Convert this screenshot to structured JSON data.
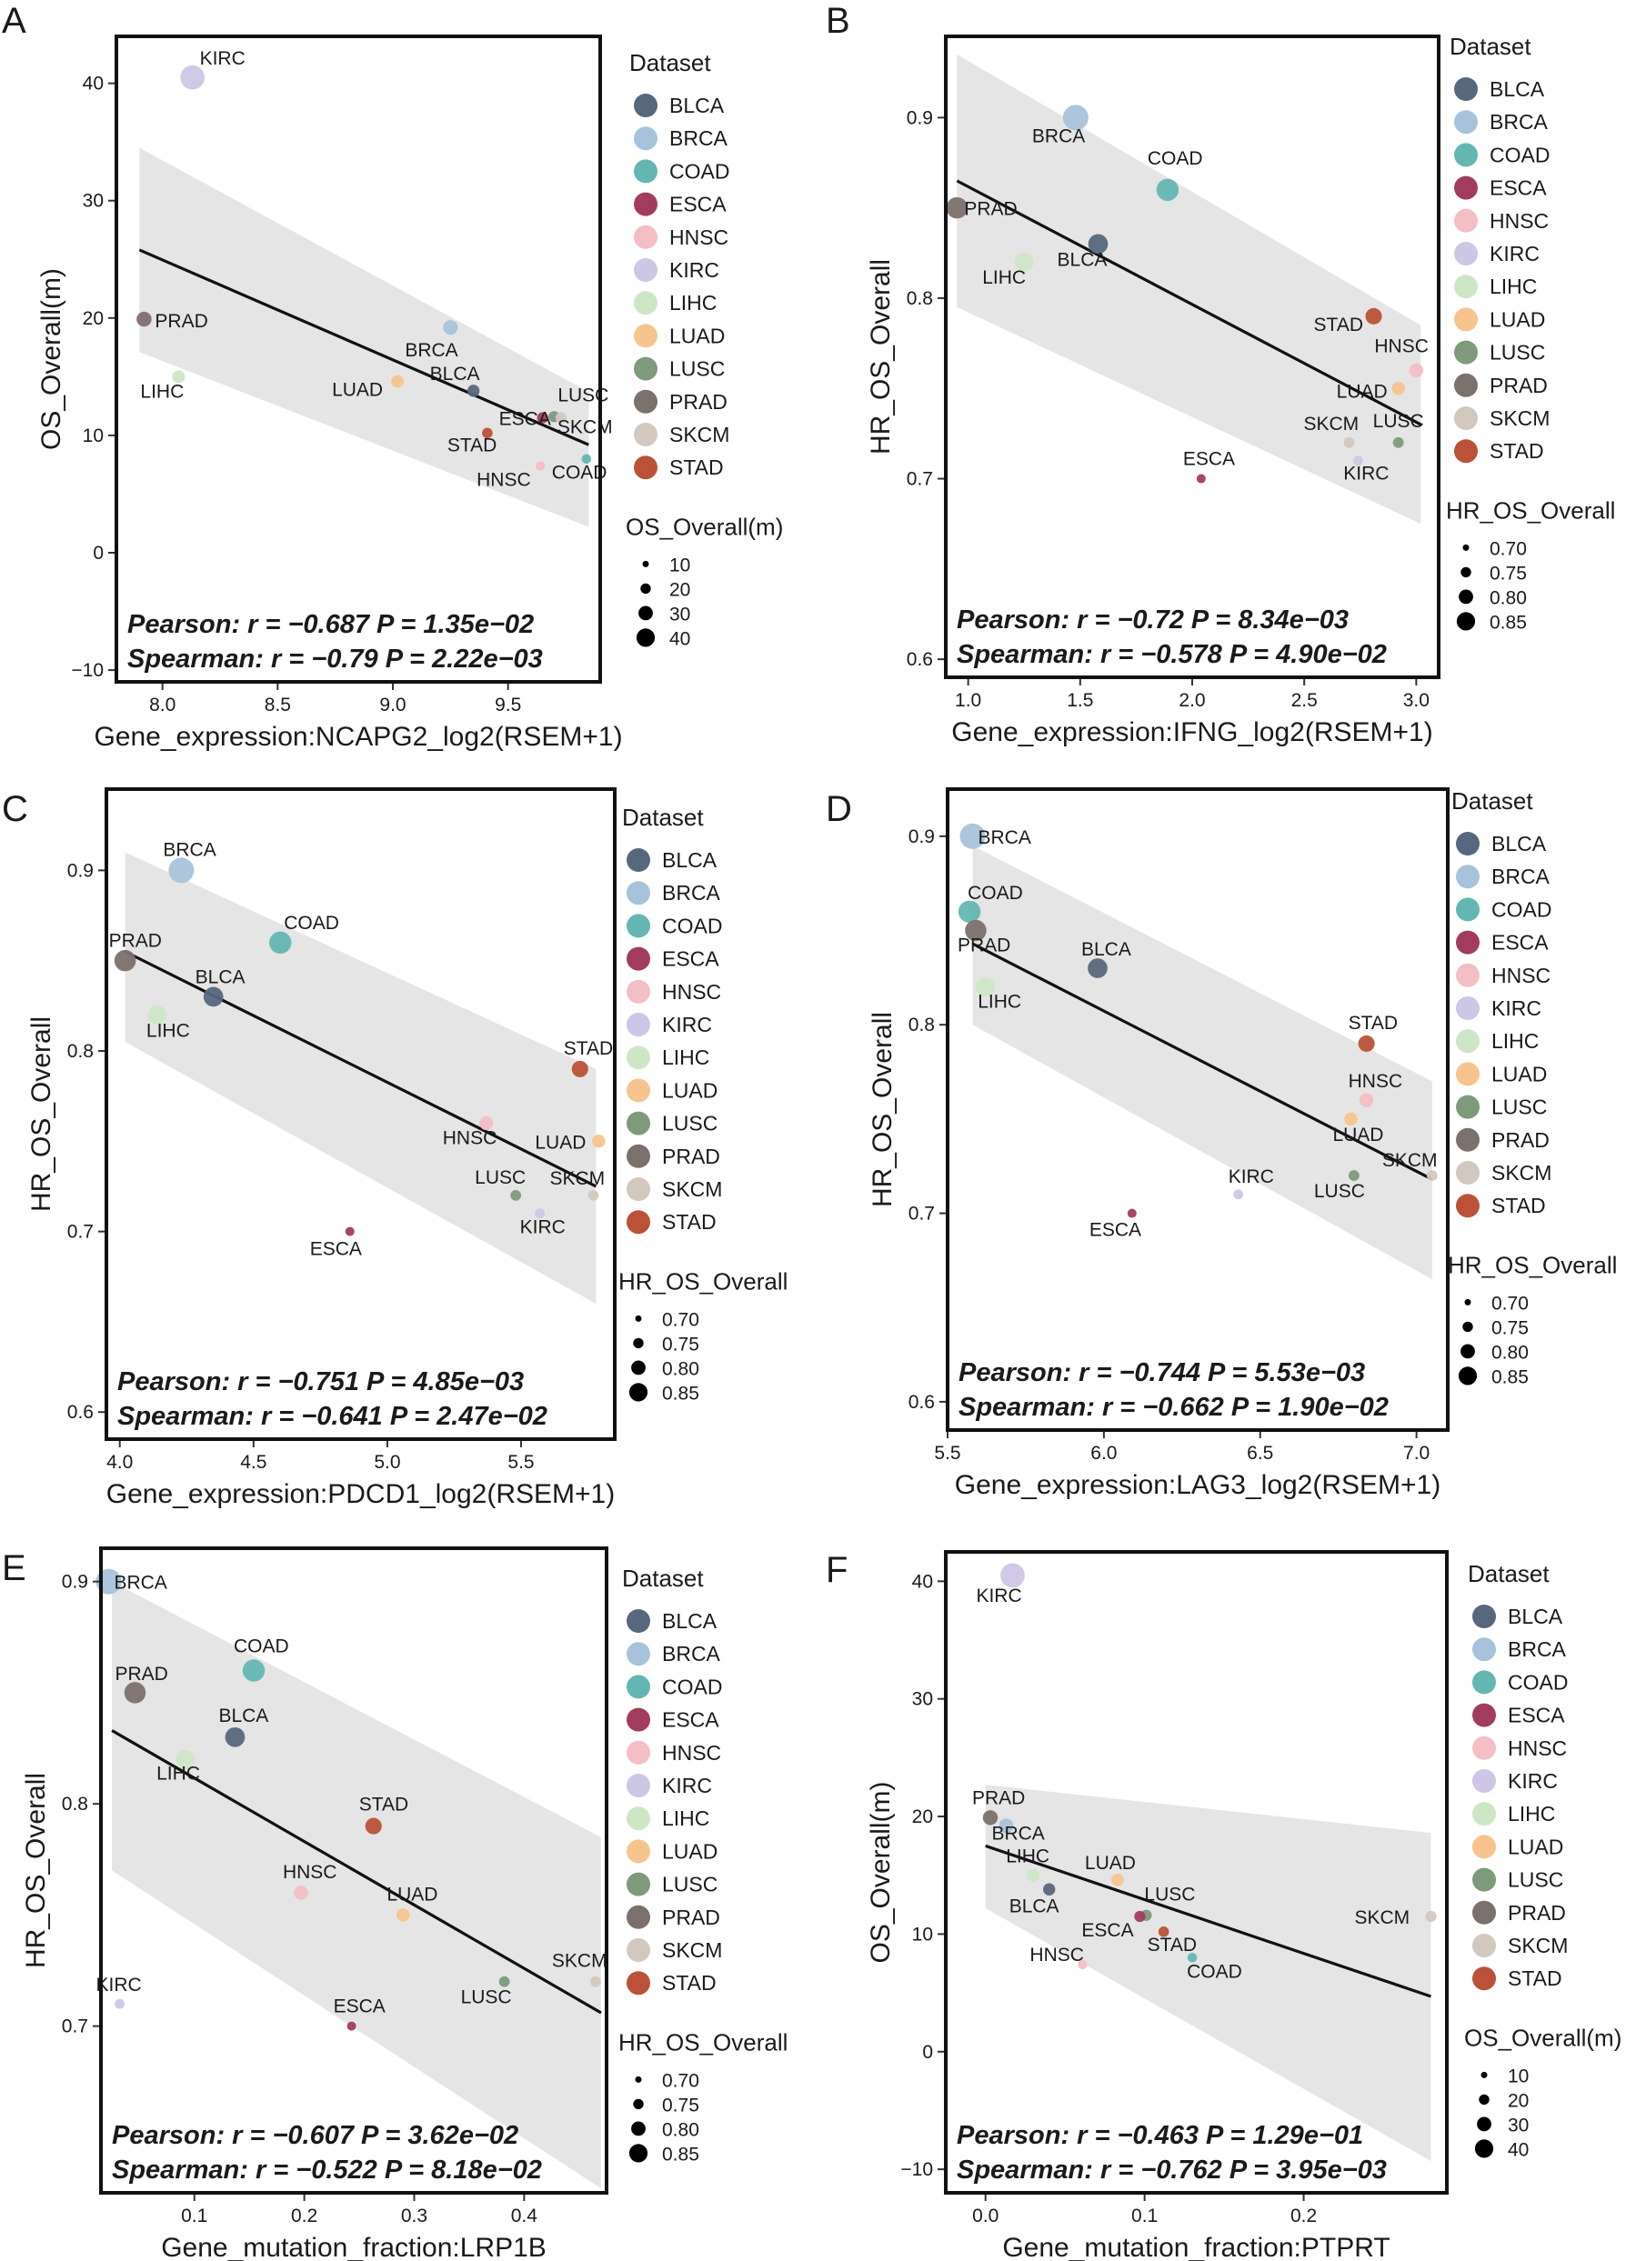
{
  "legend_labels": {
    "dataset": "Dataset"
  },
  "categories": [
    "BLCA",
    "BRCA",
    "COAD",
    "ESCA",
    "HNSC",
    "KIRC",
    "LIHC",
    "LUAD",
    "LUSC",
    "PRAD",
    "SKCM",
    "STAD"
  ],
  "colors": {
    "BLCA": "#57677d",
    "BRCA": "#a6c3db",
    "COAD": "#64b6b3",
    "ESCA": "#a23c5f",
    "HNSC": "#f3bec4",
    "KIRC": "#cdc6e7",
    "LIHC": "#cde7c6",
    "LUAD": "#f7c48d",
    "LUSC": "#7d9a7b",
    "PRAD": "#7b706b",
    "SKCM": "#d2c8be",
    "STAD": "#bb5138",
    "band": "#e5e5e5",
    "line": "#111111",
    "frame": "#111111"
  },
  "chart_data": [
    {
      "type": "scatter",
      "panel": "A",
      "xlabel": "Gene_expression:NCAPG2_log2(RSEM+1)",
      "ylabel": "OS_Overall(m)",
      "xlim": [
        7.8,
        9.9
      ],
      "ylim": [
        -11,
        44
      ],
      "xticks": [
        8.0,
        8.5,
        9.0,
        9.5
      ],
      "xtick_labels": [
        "8.0",
        "8.5",
        "9.0",
        "9.5"
      ],
      "yticks": [
        -10,
        0,
        10,
        20,
        30,
        40
      ],
      "ytick_labels": [
        "−10",
        "0",
        "10",
        "20",
        "30",
        "40"
      ],
      "size_title": "OS_Overall(m)",
      "size_legend": [
        {
          "label": "10",
          "v": 10
        },
        {
          "label": "20",
          "v": 20
        },
        {
          "label": "30",
          "v": 30
        },
        {
          "label": "40",
          "v": 40
        }
      ],
      "size_range": [
        7,
        43
      ],
      "points": [
        {
          "name": "KIRC",
          "x": 8.13,
          "y": 40.5,
          "size_value": 40.5
        },
        {
          "name": "PRAD",
          "x": 7.92,
          "y": 19.9,
          "size_value": 19.9
        },
        {
          "name": "LIHC",
          "x": 8.07,
          "y": 15.0,
          "size_value": 15.0
        },
        {
          "name": "BRCA",
          "x": 9.25,
          "y": 19.2,
          "size_value": 19.2
        },
        {
          "name": "BLCA",
          "x": 9.35,
          "y": 13.8,
          "size_value": 13.8
        },
        {
          "name": "LUAD",
          "x": 9.02,
          "y": 14.6,
          "size_value": 14.6
        },
        {
          "name": "ESCA",
          "x": 9.65,
          "y": 11.5,
          "size_value": 11.5
        },
        {
          "name": "LUSC",
          "x": 9.7,
          "y": 11.6,
          "size_value": 11.6
        },
        {
          "name": "SKCM",
          "x": 9.73,
          "y": 11.5,
          "size_value": 11.5
        },
        {
          "name": "STAD",
          "x": 9.41,
          "y": 10.2,
          "size_value": 10.2
        },
        {
          "name": "HNSC",
          "x": 9.64,
          "y": 7.4,
          "size_value": 7.4
        },
        {
          "name": "COAD",
          "x": 9.84,
          "y": 8.0,
          "size_value": 8.0
        }
      ],
      "fit": {
        "x": [
          7.9,
          9.85
        ],
        "y": [
          25.8,
          9.2
        ]
      },
      "band": {
        "upper": [
          34.5,
          13.7
        ],
        "lower": [
          17.1,
          2.2
        ]
      },
      "stats": [
        "Pearson: r = −0.687 P = 1.35e−02",
        "Spearman: r = −0.79 P = 2.22e−03"
      ]
    },
    {
      "type": "scatter",
      "panel": "B",
      "xlabel": "Gene_expression:IFNG_log2(RSEM+1)",
      "ylabel": "HR_OS_Overall",
      "xlim": [
        0.9,
        3.1
      ],
      "ylim": [
        0.59,
        0.945
      ],
      "xticks": [
        1.0,
        1.5,
        2.0,
        2.5,
        3.0
      ],
      "xtick_labels": [
        "1.0",
        "1.5",
        "2.0",
        "2.5",
        "3.0"
      ],
      "yticks": [
        0.6,
        0.7,
        0.8,
        0.9
      ],
      "ytick_labels": [
        "0.6",
        "0.7",
        "0.8",
        "0.9"
      ],
      "size_title": "HR_OS_Overall",
      "size_legend": [
        {
          "label": "0.70",
          "v": 0.7
        },
        {
          "label": "0.75",
          "v": 0.75
        },
        {
          "label": "0.80",
          "v": 0.8
        },
        {
          "label": "0.85",
          "v": 0.85
        }
      ],
      "size_range": [
        0.7,
        0.9
      ],
      "points": [
        {
          "name": "BRCA",
          "x": 1.48,
          "y": 0.9,
          "size_value": 0.9
        },
        {
          "name": "COAD",
          "x": 1.89,
          "y": 0.86,
          "size_value": 0.86
        },
        {
          "name": "PRAD",
          "x": 0.95,
          "y": 0.85,
          "size_value": 0.85
        },
        {
          "name": "BLCA",
          "x": 1.58,
          "y": 0.83,
          "size_value": 0.83
        },
        {
          "name": "LIHC",
          "x": 1.25,
          "y": 0.82,
          "size_value": 0.82
        },
        {
          "name": "STAD",
          "x": 2.81,
          "y": 0.79,
          "size_value": 0.79
        },
        {
          "name": "HNSC",
          "x": 3.0,
          "y": 0.76,
          "size_value": 0.76
        },
        {
          "name": "LUAD",
          "x": 2.92,
          "y": 0.75,
          "size_value": 0.75
        },
        {
          "name": "SKCM",
          "x": 2.7,
          "y": 0.72,
          "size_value": 0.72
        },
        {
          "name": "LUSC",
          "x": 2.92,
          "y": 0.72,
          "size_value": 0.72
        },
        {
          "name": "KIRC",
          "x": 2.74,
          "y": 0.71,
          "size_value": 0.71
        },
        {
          "name": "ESCA",
          "x": 2.04,
          "y": 0.7,
          "size_value": 0.7
        }
      ],
      "fit": {
        "x": [
          0.95,
          3.02
        ],
        "y": [
          0.865,
          0.73
        ]
      },
      "band": {
        "upper": [
          0.935,
          0.785
        ],
        "lower": [
          0.795,
          0.675
        ]
      },
      "stats": [
        "Pearson: r = −0.72 P = 8.34e−03",
        "Spearman: r = −0.578 P = 4.90e−02"
      ]
    },
    {
      "type": "scatter",
      "panel": "C",
      "xlabel": "Gene_expression:PDCD1_log2(RSEM+1)",
      "ylabel": "HR_OS_Overall",
      "xlim": [
        3.95,
        5.85
      ],
      "ylim": [
        0.585,
        0.945
      ],
      "xticks": [
        4.0,
        4.5,
        5.0,
        5.5
      ],
      "xtick_labels": [
        "4.0",
        "4.5",
        "5.0",
        "5.5"
      ],
      "yticks": [
        0.6,
        0.7,
        0.8,
        0.9
      ],
      "ytick_labels": [
        "0.6",
        "0.7",
        "0.8",
        "0.9"
      ],
      "size_title": "HR_OS_Overall",
      "size_legend": [
        {
          "label": "0.70",
          "v": 0.7
        },
        {
          "label": "0.75",
          "v": 0.75
        },
        {
          "label": "0.80",
          "v": 0.8
        },
        {
          "label": "0.85",
          "v": 0.85
        }
      ],
      "size_range": [
        0.7,
        0.9
      ],
      "points": [
        {
          "name": "BRCA",
          "x": 4.23,
          "y": 0.9,
          "size_value": 0.9
        },
        {
          "name": "COAD",
          "x": 4.6,
          "y": 0.86,
          "size_value": 0.86
        },
        {
          "name": "PRAD",
          "x": 4.02,
          "y": 0.85,
          "size_value": 0.85
        },
        {
          "name": "BLCA",
          "x": 4.35,
          "y": 0.83,
          "size_value": 0.83
        },
        {
          "name": "LIHC",
          "x": 4.14,
          "y": 0.82,
          "size_value": 0.82
        },
        {
          "name": "STAD",
          "x": 5.72,
          "y": 0.79,
          "size_value": 0.79
        },
        {
          "name": "HNSC",
          "x": 5.37,
          "y": 0.76,
          "size_value": 0.76
        },
        {
          "name": "LUAD",
          "x": 5.79,
          "y": 0.75,
          "size_value": 0.75
        },
        {
          "name": "LUSC",
          "x": 5.48,
          "y": 0.72,
          "size_value": 0.72
        },
        {
          "name": "SKCM",
          "x": 5.77,
          "y": 0.72,
          "size_value": 0.72
        },
        {
          "name": "KIRC",
          "x": 5.57,
          "y": 0.71,
          "size_value": 0.71
        },
        {
          "name": "ESCA",
          "x": 4.86,
          "y": 0.7,
          "size_value": 0.7
        }
      ],
      "fit": {
        "x": [
          4.02,
          5.78
        ],
        "y": [
          0.855,
          0.725
        ]
      },
      "band": {
        "upper": [
          0.91,
          0.79
        ],
        "lower": [
          0.805,
          0.66
        ]
      },
      "stats": [
        "Pearson: r = −0.751 P = 4.85e−03",
        "Spearman: r = −0.641 P = 2.47e−02"
      ]
    },
    {
      "type": "scatter",
      "panel": "D",
      "xlabel": "Gene_expression:LAG3_log2(RSEM+1)",
      "ylabel": "HR_OS_Overall",
      "xlim": [
        5.5,
        7.1
      ],
      "ylim": [
        0.585,
        0.925
      ],
      "xticks": [
        5.5,
        6.0,
        6.5,
        7.0
      ],
      "xtick_labels": [
        "5.5",
        "6.0",
        "6.5",
        "7.0"
      ],
      "yticks": [
        0.6,
        0.7,
        0.8,
        0.9
      ],
      "ytick_labels": [
        "0.6",
        "0.7",
        "0.8",
        "0.9"
      ],
      "size_title": "HR_OS_Overall",
      "size_legend": [
        {
          "label": "0.70",
          "v": 0.7
        },
        {
          "label": "0.75",
          "v": 0.75
        },
        {
          "label": "0.80",
          "v": 0.8
        },
        {
          "label": "0.85",
          "v": 0.85
        }
      ],
      "size_range": [
        0.7,
        0.9
      ],
      "points": [
        {
          "name": "BRCA",
          "x": 5.58,
          "y": 0.9,
          "size_value": 0.9
        },
        {
          "name": "COAD",
          "x": 5.57,
          "y": 0.86,
          "size_value": 0.86
        },
        {
          "name": "PRAD",
          "x": 5.59,
          "y": 0.85,
          "size_value": 0.85
        },
        {
          "name": "BLCA",
          "x": 5.98,
          "y": 0.83,
          "size_value": 0.83
        },
        {
          "name": "LIHC",
          "x": 5.62,
          "y": 0.82,
          "size_value": 0.82
        },
        {
          "name": "STAD",
          "x": 6.84,
          "y": 0.79,
          "size_value": 0.79
        },
        {
          "name": "HNSC",
          "x": 6.84,
          "y": 0.76,
          "size_value": 0.76
        },
        {
          "name": "LUAD",
          "x": 6.79,
          "y": 0.75,
          "size_value": 0.75
        },
        {
          "name": "LUSC",
          "x": 6.8,
          "y": 0.72,
          "size_value": 0.72
        },
        {
          "name": "SKCM",
          "x": 7.05,
          "y": 0.72,
          "size_value": 0.72
        },
        {
          "name": "KIRC",
          "x": 6.43,
          "y": 0.71,
          "size_value": 0.71
        },
        {
          "name": "ESCA",
          "x": 6.09,
          "y": 0.7,
          "size_value": 0.7
        }
      ],
      "fit": {
        "x": [
          5.58,
          7.05
        ],
        "y": [
          0.843,
          0.718
        ]
      },
      "band": {
        "upper": [
          0.895,
          0.77
        ],
        "lower": [
          0.8,
          0.665
        ]
      },
      "stats": [
        "Pearson: r = −0.744 P = 5.53e−03",
        "Spearman: r = −0.662 P = 1.90e−02"
      ]
    },
    {
      "type": "scatter",
      "panel": "E",
      "xlabel": "Gene_mutation_fraction:LRP1B",
      "ylabel": "HR_OS_Overall",
      "xlim": [
        0.015,
        0.475
      ],
      "ylim": [
        0.625,
        0.915
      ],
      "xticks": [
        0.1,
        0.2,
        0.3,
        0.4
      ],
      "xtick_labels": [
        "0.1",
        "0.2",
        "0.3",
        "0.4"
      ],
      "yticks": [
        0.7,
        0.8,
        0.9
      ],
      "ytick_labels": [
        "0.7",
        "0.8",
        "0.9"
      ],
      "size_title": "HR_OS_Overall",
      "size_legend": [
        {
          "label": "0.70",
          "v": 0.7
        },
        {
          "label": "0.75",
          "v": 0.75
        },
        {
          "label": "0.80",
          "v": 0.8
        },
        {
          "label": "0.85",
          "v": 0.85
        }
      ],
      "size_range": [
        0.7,
        0.9
      ],
      "points": [
        {
          "name": "BRCA",
          "x": 0.022,
          "y": 0.9,
          "size_value": 0.9
        },
        {
          "name": "COAD",
          "x": 0.154,
          "y": 0.86,
          "size_value": 0.86
        },
        {
          "name": "PRAD",
          "x": 0.046,
          "y": 0.85,
          "size_value": 0.85
        },
        {
          "name": "BLCA",
          "x": 0.137,
          "y": 0.83,
          "size_value": 0.83
        },
        {
          "name": "LIHC",
          "x": 0.092,
          "y": 0.82,
          "size_value": 0.82
        },
        {
          "name": "STAD",
          "x": 0.263,
          "y": 0.79,
          "size_value": 0.79
        },
        {
          "name": "HNSC",
          "x": 0.197,
          "y": 0.76,
          "size_value": 0.76
        },
        {
          "name": "LUAD",
          "x": 0.29,
          "y": 0.75,
          "size_value": 0.75
        },
        {
          "name": "LUSC",
          "x": 0.382,
          "y": 0.72,
          "size_value": 0.72
        },
        {
          "name": "SKCM",
          "x": 0.465,
          "y": 0.72,
          "size_value": 0.72
        },
        {
          "name": "KIRC",
          "x": 0.032,
          "y": 0.71,
          "size_value": 0.71
        },
        {
          "name": "ESCA",
          "x": 0.243,
          "y": 0.7,
          "size_value": 0.7
        }
      ],
      "fit": {
        "x": [
          0.025,
          0.47
        ],
        "y": [
          0.833,
          0.706
        ]
      },
      "band": {
        "upper": [
          0.9,
          0.785
        ],
        "lower": [
          0.77,
          0.627
        ]
      },
      "stats": [
        "Pearson: r = −0.607 P = 3.62e−02",
        "Spearman: r = −0.522 P = 8.18e−02"
      ]
    },
    {
      "type": "scatter",
      "panel": "F",
      "xlabel": "Gene_mutation_fraction:PTPRT",
      "ylabel": "OS_Overall(m)",
      "xlim": [
        -0.025,
        0.29
      ],
      "ylim": [
        -12,
        42.5
      ],
      "xticks": [
        0.0,
        0.1,
        0.2
      ],
      "xtick_labels": [
        "0.0",
        "0.1",
        "0.2"
      ],
      "yticks": [
        -10,
        0,
        10,
        20,
        30,
        40
      ],
      "ytick_labels": [
        "−10",
        "0",
        "10",
        "20",
        "30",
        "40"
      ],
      "size_title": "OS_Overall(m)",
      "size_legend": [
        {
          "label": "10",
          "v": 10
        },
        {
          "label": "20",
          "v": 20
        },
        {
          "label": "30",
          "v": 30
        },
        {
          "label": "40",
          "v": 40
        }
      ],
      "size_range": [
        7,
        43
      ],
      "points": [
        {
          "name": "KIRC",
          "x": 0.017,
          "y": 40.5,
          "size_value": 40.5
        },
        {
          "name": "PRAD",
          "x": 0.003,
          "y": 19.9,
          "size_value": 19.9
        },
        {
          "name": "BRCA",
          "x": 0.013,
          "y": 19.2,
          "size_value": 19.2
        },
        {
          "name": "LIHC",
          "x": 0.03,
          "y": 15.0,
          "size_value": 15.0
        },
        {
          "name": "LUAD",
          "x": 0.083,
          "y": 14.6,
          "size_value": 14.6
        },
        {
          "name": "BLCA",
          "x": 0.04,
          "y": 13.8,
          "size_value": 13.8
        },
        {
          "name": "LUSC",
          "x": 0.101,
          "y": 11.6,
          "size_value": 11.6
        },
        {
          "name": "ESCA",
          "x": 0.097,
          "y": 11.5,
          "size_value": 11.5
        },
        {
          "name": "SKCM",
          "x": 0.28,
          "y": 11.5,
          "size_value": 11.5
        },
        {
          "name": "STAD",
          "x": 0.112,
          "y": 10.2,
          "size_value": 10.2
        },
        {
          "name": "COAD",
          "x": 0.13,
          "y": 8.0,
          "size_value": 8.0
        },
        {
          "name": "HNSC",
          "x": 0.061,
          "y": 7.4,
          "size_value": 7.4
        }
      ],
      "fit": {
        "x": [
          0.0,
          0.28
        ],
        "y": [
          17.5,
          4.7
        ]
      },
      "band": {
        "upper": [
          22.7,
          18.6
        ],
        "lower": [
          12.2,
          -9.3
        ]
      },
      "stats": [
        "Pearson: r = −0.463 P = 1.29e−01",
        "Spearman: r = −0.762 P = 3.95e−03"
      ]
    }
  ]
}
